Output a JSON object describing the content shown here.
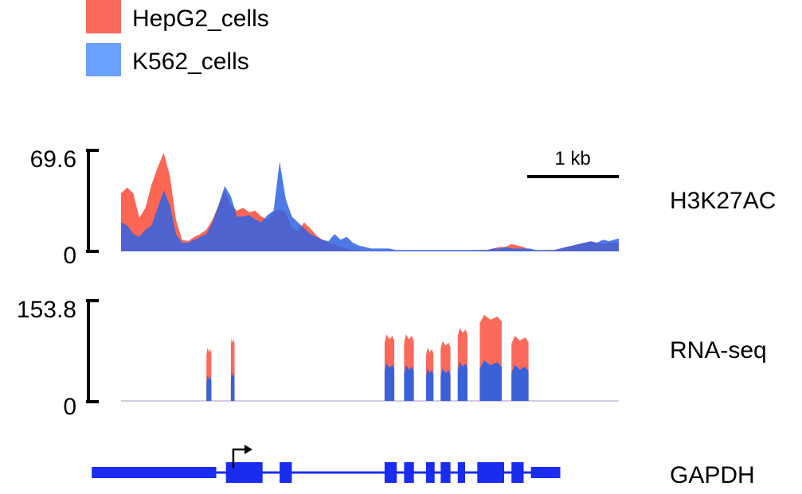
{
  "colors": {
    "hepg2": "#fb6a5a",
    "k562": "#3a6ae0",
    "legend_k562": "#6aa3ff",
    "gene": "#1a2cf0",
    "axis": "#000000"
  },
  "chart_data": {
    "type": "area",
    "legend": {
      "placement": "top-left",
      "entries": [
        {
          "label": "HepG2_cells",
          "color": "#fb6a5a"
        },
        {
          "label": "K562_cells",
          "color": "#6aa3ff"
        }
      ]
    },
    "scale_bar": {
      "label": "1 kb",
      "length_kb": 1
    },
    "x": {
      "unit": "kb",
      "range": [
        0,
        4.08
      ]
    },
    "tracks": [
      {
        "name": "H3K27AC",
        "ylim": [
          0,
          69.6
        ],
        "yticks": [
          "69.6",
          "0"
        ],
        "series": [
          {
            "name": "HepG2_cells",
            "x": [
              0,
              0.05,
              0.1,
              0.15,
              0.2,
              0.25,
              0.3,
              0.35,
              0.4,
              0.45,
              0.5,
              0.55,
              0.6,
              0.65,
              0.7,
              0.75,
              0.8,
              0.85,
              0.9,
              0.95,
              1.0,
              1.05,
              1.1,
              1.15,
              1.2,
              1.25,
              1.3,
              1.35,
              1.4,
              1.45,
              1.5,
              1.55,
              1.6,
              1.65,
              1.7,
              1.75,
              1.8,
              1.85,
              1.9,
              1.95,
              2.0,
              2.05,
              2.1,
              2.15,
              2.2,
              2.25,
              2.3,
              2.35,
              2.4,
              2.45,
              2.5,
              2.55,
              2.6,
              2.65,
              2.7,
              2.75,
              2.8,
              2.85,
              2.9,
              2.95,
              3.0,
              3.05,
              3.1,
              3.15,
              3.2,
              3.25,
              3.3,
              3.35,
              3.4,
              3.45,
              3.5,
              3.55,
              3.6,
              3.65,
              3.7,
              3.75,
              3.8,
              3.85,
              3.9,
              3.95,
              4.0,
              4.08
            ],
            "values": [
              40,
              44,
              40,
              23,
              30,
              46,
              58,
              68,
              52,
              22,
              8,
              7,
              10,
              12,
              15,
              22,
              32,
              42,
              32,
              28,
              30,
              27,
              28,
              24,
              22,
              27,
              29,
              27,
              16,
              14,
              20,
              16,
              11,
              8,
              6,
              5,
              3,
              2,
              1,
              0.5,
              0.5,
              0.5,
              0.5,
              0.5,
              0.5,
              0.5,
              0.5,
              0.5,
              0.5,
              0.5,
              0.5,
              0.5,
              0.5,
              0.5,
              0.5,
              0.5,
              0.5,
              0.5,
              1,
              1,
              1,
              2,
              3,
              3,
              5,
              4,
              3,
              1,
              0.5,
              0.5,
              1,
              1,
              2,
              3,
              4,
              5,
              6,
              7,
              6,
              5,
              6,
              6
            ]
          },
          {
            "name": "K562_cells",
            "x": [
              0,
              0.05,
              0.1,
              0.15,
              0.2,
              0.25,
              0.3,
              0.35,
              0.4,
              0.45,
              0.5,
              0.55,
              0.6,
              0.65,
              0.7,
              0.75,
              0.8,
              0.85,
              0.9,
              0.95,
              1.0,
              1.05,
              1.1,
              1.15,
              1.2,
              1.25,
              1.3,
              1.35,
              1.4,
              1.45,
              1.5,
              1.55,
              1.6,
              1.65,
              1.7,
              1.75,
              1.8,
              1.85,
              1.9,
              1.95,
              2.0,
              2.05,
              2.1,
              2.15,
              2.2,
              2.25,
              2.3,
              2.35,
              2.4,
              2.45,
              2.5,
              2.55,
              2.6,
              2.65,
              2.7,
              2.75,
              2.8,
              2.85,
              2.9,
              2.95,
              3.0,
              3.05,
              3.1,
              3.15,
              3.2,
              3.25,
              3.3,
              3.35,
              3.4,
              3.45,
              3.5,
              3.55,
              3.6,
              3.65,
              3.7,
              3.75,
              3.8,
              3.85,
              3.9,
              3.95,
              4.0,
              4.08
            ],
            "values": [
              20,
              18,
              12,
              10,
              15,
              18,
              30,
              42,
              32,
              12,
              6,
              6,
              8,
              10,
              12,
              20,
              32,
              45,
              38,
              24,
              24,
              25,
              22,
              20,
              25,
              28,
              62,
              36,
              24,
              20,
              16,
              12,
              10,
              8,
              7,
              12,
              8,
              10,
              6,
              4,
              3,
              2,
              2,
              2,
              2,
              1,
              1,
              1,
              1,
              1,
              1,
              1,
              1,
              1,
              1,
              1,
              1,
              1,
              1,
              1,
              1,
              2,
              2,
              3,
              2,
              2,
              2,
              2,
              1,
              1,
              1,
              1,
              2,
              3,
              4,
              5,
              6,
              7,
              6,
              8,
              7,
              9
            ]
          }
        ]
      },
      {
        "name": "RNA-seq",
        "ylim": [
          0,
          153.8
        ],
        "yticks": [
          "153.8",
          "0"
        ],
        "series": [
          {
            "name": "HepG2_cells",
            "peaks": [
              [
                0.7,
                0.74,
                82
              ],
              [
                0.9,
                0.93,
                97
              ],
              [
                2.16,
                2.24,
                102
              ],
              [
                2.32,
                2.4,
                102
              ],
              [
                2.5,
                2.56,
                82
              ],
              [
                2.62,
                2.7,
                92
              ],
              [
                2.76,
                2.84,
                112
              ],
              [
                2.94,
                3.12,
                132
              ],
              [
                3.2,
                3.34,
                100
              ]
            ]
          },
          {
            "name": "K562_cells",
            "peaks": [
              [
                0.7,
                0.74,
                40
              ],
              [
                0.9,
                0.93,
                45
              ],
              [
                2.16,
                2.24,
                58
              ],
              [
                2.32,
                2.4,
                55
              ],
              [
                2.5,
                2.56,
                50
              ],
              [
                2.62,
                2.7,
                50
              ],
              [
                2.76,
                2.84,
                60
              ],
              [
                2.94,
                3.12,
                62
              ],
              [
                3.2,
                3.34,
                55
              ]
            ]
          }
        ]
      }
    ]
  },
  "gene": {
    "name": "GAPDH",
    "range_kb": [
      -0.24,
      3.6
    ],
    "tss_kb": 0.92,
    "exons": [
      [
        -0.24,
        0.78
      ],
      [
        0.86,
        1.16
      ],
      [
        1.3,
        1.4
      ],
      [
        2.16,
        2.26
      ],
      [
        2.32,
        2.4
      ],
      [
        2.5,
        2.57
      ],
      [
        2.62,
        2.7
      ],
      [
        2.76,
        2.82
      ],
      [
        2.92,
        3.14
      ],
      [
        3.2,
        3.3
      ],
      [
        3.36,
        3.6
      ]
    ]
  }
}
